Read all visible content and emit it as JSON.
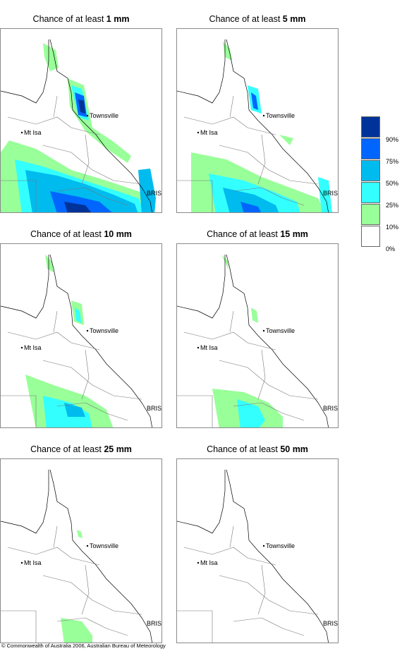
{
  "title_prefix": "Chance of at least",
  "panels": [
    {
      "amount": "1 mm"
    },
    {
      "amount": "5 mm"
    },
    {
      "amount": "10 mm"
    },
    {
      "amount": "15 mm"
    },
    {
      "amount": "25 mm"
    },
    {
      "amount": "50 mm"
    }
  ],
  "places": {
    "townsville": "Townsville",
    "mt_isa": "Mt Isa",
    "bris": "BRIS"
  },
  "legend": {
    "labels": [
      "90%",
      "75%",
      "50%",
      "25%",
      "10%",
      "0%"
    ],
    "colors": [
      "#003399",
      "#0066ff",
      "#00bbee",
      "#33ffff",
      "#99ff99",
      "#ffffff"
    ]
  },
  "copyright": "© Commonwealth of Australia 2006, Australian Bureau of Meteorology"
}
